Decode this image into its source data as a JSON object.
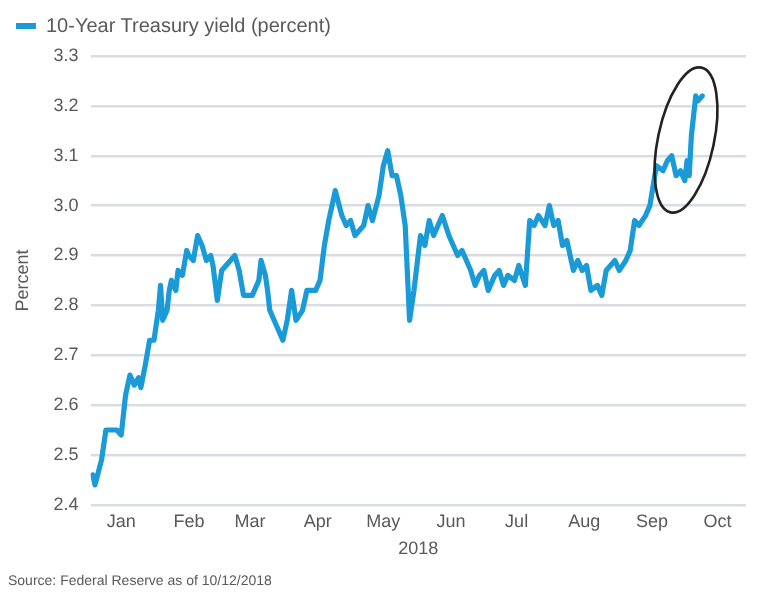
{
  "chart_data": {
    "type": "line",
    "xlabel": "2018",
    "ylabel": "Percent",
    "legend": "top left",
    "grid": "y",
    "marker": "none",
    "line_style": "solid",
    "annotations": [
      "Source: Federal Reserve as of 10/12/2018"
    ],
    "xlim": [
      "2018-01-01",
      "2018-10-28"
    ],
    "xticks": [
      {
        "value": "2018-01-15",
        "label": "Jan"
      },
      {
        "value": "2018-02-15",
        "label": "Feb"
      },
      {
        "value": "2018-03-15",
        "label": "Mar"
      },
      {
        "value": "2018-04-15",
        "label": "Apr"
      },
      {
        "value": "2018-05-15",
        "label": "May"
      },
      {
        "value": "2018-06-15",
        "label": "Jun"
      },
      {
        "value": "2018-07-15",
        "label": "Jul"
      },
      {
        "value": "2018-08-15",
        "label": "Aug"
      },
      {
        "value": "2018-09-15",
        "label": "Sep"
      },
      {
        "value": "2018-10-15",
        "label": "Oct"
      }
    ],
    "ylim": [
      2.4,
      3.3
    ],
    "yticks": [
      2.4,
      2.5,
      2.6,
      2.7,
      2.8,
      2.9,
      {
        "value": 3,
        "label": "3.0"
      },
      3.1,
      3.2,
      3.3
    ],
    "x": [
      "2018-01-02",
      "2018-01-03",
      "2018-01-06",
      "2018-01-08",
      "2018-01-10",
      "2018-01-13",
      "2018-01-15",
      "2018-01-17",
      "2018-01-19",
      "2018-01-21",
      "2018-01-23",
      "2018-01-24",
      "2018-01-26",
      "2018-01-28",
      "2018-01-30",
      "2018-02-01",
      "2018-02-02",
      "2018-02-03",
      "2018-02-05",
      "2018-02-06",
      "2018-02-07",
      "2018-02-09",
      "2018-02-10",
      "2018-02-12",
      "2018-02-14",
      "2018-02-15",
      "2018-02-17",
      "2018-02-19",
      "2018-02-21",
      "2018-02-23",
      "2018-02-25",
      "2018-02-26",
      "2018-02-28",
      "2018-03-02",
      "2018-03-04",
      "2018-03-06",
      "2018-03-08",
      "2018-03-10",
      "2018-03-12",
      "2018-03-16",
      "2018-03-19",
      "2018-03-20",
      "2018-03-22",
      "2018-03-23",
      "2018-03-24",
      "2018-03-27",
      "2018-03-30",
      "2018-04-01",
      "2018-04-03",
      "2018-04-05",
      "2018-04-08",
      "2018-04-10",
      "2018-04-14",
      "2018-04-16",
      "2018-04-18",
      "2018-04-20",
      "2018-04-23",
      "2018-04-26",
      "2018-04-28",
      "2018-04-30",
      "2018-05-02",
      "2018-05-06",
      "2018-05-08",
      "2018-05-10",
      "2018-05-13",
      "2018-05-15",
      "2018-05-17",
      "2018-05-19",
      "2018-05-21",
      "2018-05-23",
      "2018-05-25",
      "2018-05-27",
      "2018-05-29",
      "2018-06-01",
      "2018-06-03",
      "2018-06-05",
      "2018-06-07",
      "2018-06-09",
      "2018-06-11",
      "2018-06-14",
      "2018-06-16",
      "2018-06-18",
      "2018-06-20",
      "2018-06-22",
      "2018-06-24",
      "2018-06-26",
      "2018-06-28",
      "2018-06-30",
      "2018-07-02",
      "2018-07-05",
      "2018-07-07",
      "2018-07-09",
      "2018-07-11",
      "2018-07-14",
      "2018-07-16",
      "2018-07-19",
      "2018-07-21",
      "2018-07-23",
      "2018-07-25",
      "2018-07-28",
      "2018-07-30",
      "2018-08-01",
      "2018-08-03",
      "2018-08-05",
      "2018-08-07",
      "2018-08-10",
      "2018-08-12",
      "2018-08-14",
      "2018-08-16",
      "2018-08-18",
      "2018-08-21",
      "2018-08-23",
      "2018-08-25",
      "2018-08-27",
      "2018-08-29",
      "2018-08-31",
      "2018-09-03",
      "2018-09-05",
      "2018-09-07",
      "2018-09-09",
      "2018-09-12",
      "2018-09-14",
      "2018-09-17",
      "2018-09-20",
      "2018-09-22",
      "2018-09-24",
      "2018-09-26",
      "2018-09-28",
      "2018-09-30",
      "2018-10-01",
      "2018-10-02",
      "2018-10-03",
      "2018-10-05",
      "2018-10-06",
      "2018-10-08"
    ],
    "series": [
      {
        "name": "10-Year Treasury yield (percent)",
        "color": "#1a9bd7",
        "values": [
          2.46,
          2.44,
          2.49,
          2.55,
          2.55,
          2.55,
          2.54,
          2.62,
          2.66,
          2.64,
          2.655,
          2.635,
          2.68,
          2.73,
          2.73,
          2.79,
          2.84,
          2.77,
          2.79,
          2.83,
          2.85,
          2.83,
          2.87,
          2.86,
          2.91,
          2.9,
          2.89,
          2.94,
          2.92,
          2.89,
          2.9,
          2.88,
          2.81,
          2.87,
          2.88,
          2.89,
          2.9,
          2.87,
          2.82,
          2.82,
          2.85,
          2.89,
          2.86,
          2.83,
          2.79,
          2.76,
          2.73,
          2.77,
          2.83,
          2.77,
          2.79,
          2.83,
          2.83,
          2.85,
          2.92,
          2.97,
          3.03,
          2.98,
          2.96,
          2.97,
          2.94,
          2.96,
          3.0,
          2.97,
          3.02,
          3.08,
          3.11,
          3.06,
          3.06,
          3.02,
          2.96,
          2.77,
          2.83,
          2.94,
          2.92,
          2.97,
          2.94,
          2.96,
          2.98,
          2.94,
          2.92,
          2.9,
          2.91,
          2.89,
          2.87,
          2.84,
          2.86,
          2.87,
          2.83,
          2.86,
          2.87,
          2.84,
          2.86,
          2.85,
          2.88,
          2.84,
          2.97,
          2.96,
          2.98,
          2.96,
          3.0,
          2.96,
          2.97,
          2.92,
          2.93,
          2.87,
          2.89,
          2.87,
          2.88,
          2.83,
          2.84,
          2.82,
          2.87,
          2.88,
          2.89,
          2.87,
          2.89,
          2.91,
          2.97,
          2.96,
          2.98,
          3.0,
          3.08,
          3.07,
          3.09,
          3.1,
          3.06,
          3.07,
          3.05,
          3.09,
          3.06,
          3.14,
          3.22,
          3.21,
          3.22
        ]
      }
    ]
  }
}
